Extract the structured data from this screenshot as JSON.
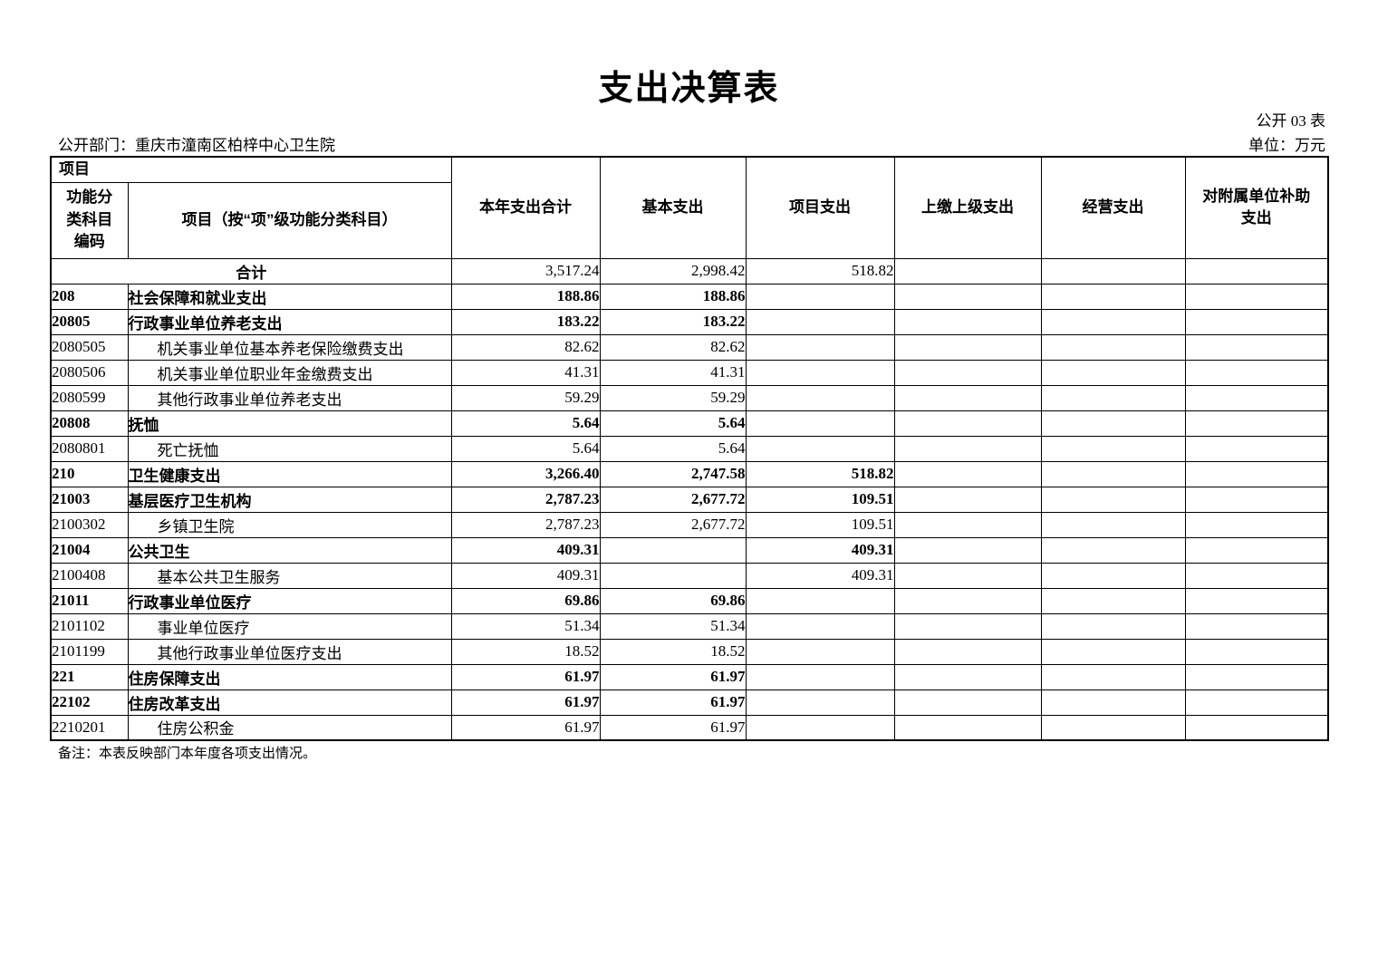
{
  "title": "支出决算表",
  "meta": {
    "table_number": "公开 03 表",
    "department": "公开部门：重庆市潼南区柏梓中心卫生院",
    "unit": "单位：万元"
  },
  "table": {
    "header": {
      "project": "项目",
      "code": "功能分\n类科目\n编码",
      "item": "项目（按“项”级功能分类科目）",
      "cols": [
        "本年支出合计",
        "基本支出",
        "项目支出",
        "上缴上级支出",
        "经营支出",
        "对附属单位补助\n支出"
      ]
    },
    "rows": [
      {
        "total": true,
        "code": "",
        "name": "合计",
        "bold": false,
        "values": [
          "3,517.24",
          "2,998.42",
          "518.82",
          "",
          "",
          ""
        ]
      },
      {
        "total": false,
        "code": "208",
        "name": "社会保障和就业支出",
        "bold": true,
        "values": [
          "188.86",
          "188.86",
          "",
          "",
          "",
          ""
        ]
      },
      {
        "total": false,
        "code": "20805",
        "name": "行政事业单位养老支出",
        "bold": true,
        "values": [
          "183.22",
          "183.22",
          "",
          "",
          "",
          ""
        ]
      },
      {
        "total": false,
        "code": "2080505",
        "name": "机关事业单位基本养老保险缴费支出",
        "bold": false,
        "values": [
          "82.62",
          "82.62",
          "",
          "",
          "",
          ""
        ]
      },
      {
        "total": false,
        "code": "2080506",
        "name": "机关事业单位职业年金缴费支出",
        "bold": false,
        "values": [
          "41.31",
          "41.31",
          "",
          "",
          "",
          ""
        ]
      },
      {
        "total": false,
        "code": "2080599",
        "name": "其他行政事业单位养老支出",
        "bold": false,
        "values": [
          "59.29",
          "59.29",
          "",
          "",
          "",
          ""
        ]
      },
      {
        "total": false,
        "code": "20808",
        "name": "抚恤",
        "bold": true,
        "values": [
          "5.64",
          "5.64",
          "",
          "",
          "",
          ""
        ]
      },
      {
        "total": false,
        "code": "2080801",
        "name": "死亡抚恤",
        "bold": false,
        "values": [
          "5.64",
          "5.64",
          "",
          "",
          "",
          ""
        ]
      },
      {
        "total": false,
        "code": "210",
        "name": "卫生健康支出",
        "bold": true,
        "values": [
          "3,266.40",
          "2,747.58",
          "518.82",
          "",
          "",
          ""
        ]
      },
      {
        "total": false,
        "code": "21003",
        "name": "基层医疗卫生机构",
        "bold": true,
        "values": [
          "2,787.23",
          "2,677.72",
          "109.51",
          "",
          "",
          ""
        ]
      },
      {
        "total": false,
        "code": "2100302",
        "name": "乡镇卫生院",
        "bold": false,
        "values": [
          "2,787.23",
          "2,677.72",
          "109.51",
          "",
          "",
          ""
        ]
      },
      {
        "total": false,
        "code": "21004",
        "name": "公共卫生",
        "bold": true,
        "values": [
          "409.31",
          "",
          "409.31",
          "",
          "",
          ""
        ]
      },
      {
        "total": false,
        "code": "2100408",
        "name": "基本公共卫生服务",
        "bold": false,
        "values": [
          "409.31",
          "",
          "409.31",
          "",
          "",
          ""
        ]
      },
      {
        "total": false,
        "code": "21011",
        "name": "行政事业单位医疗",
        "bold": true,
        "values": [
          "69.86",
          "69.86",
          "",
          "",
          "",
          ""
        ]
      },
      {
        "total": false,
        "code": "2101102",
        "name": "事业单位医疗",
        "bold": false,
        "values": [
          "51.34",
          "51.34",
          "",
          "",
          "",
          ""
        ]
      },
      {
        "total": false,
        "code": "2101199",
        "name": "其他行政事业单位医疗支出",
        "bold": false,
        "values": [
          "18.52",
          "18.52",
          "",
          "",
          "",
          ""
        ]
      },
      {
        "total": false,
        "code": "221",
        "name": "住房保障支出",
        "bold": true,
        "values": [
          "61.97",
          "61.97",
          "",
          "",
          "",
          ""
        ]
      },
      {
        "total": false,
        "code": "22102",
        "name": "住房改革支出",
        "bold": true,
        "values": [
          "61.97",
          "61.97",
          "",
          "",
          "",
          ""
        ]
      },
      {
        "total": false,
        "code": "2210201",
        "name": "住房公积金",
        "bold": false,
        "values": [
          "61.97",
          "61.97",
          "",
          "",
          "",
          ""
        ]
      }
    ]
  },
  "note": "备注：本表反映部门本年度各项支出情况。"
}
